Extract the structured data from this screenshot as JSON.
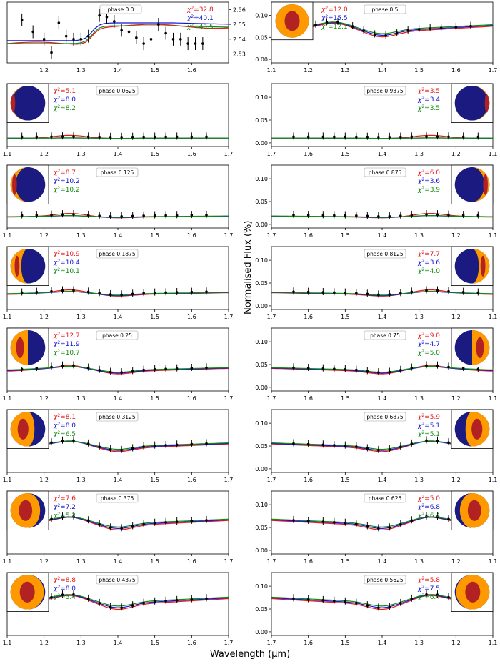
{
  "figure": {
    "xlabel": "Wavelength (μm)",
    "ylabel": "Normalised Flux (%)"
  },
  "colors": {
    "model_a": "#e41a1c",
    "model_b": "#1414d8",
    "model_c": "#138a13",
    "day": "#ff9900",
    "night": "#1a1a80",
    "hot": "#b22222"
  },
  "chart_data": [
    {
      "type": "line",
      "phase": "phase 0.0",
      "chi2": [
        "32.8",
        "40.1",
        "43.5"
      ],
      "xlim": [
        1.1,
        1.7
      ],
      "xticks": [
        "1.2",
        "1.3",
        "1.4",
        "1.5",
        "1.6"
      ],
      "ylim": [
        2.524,
        2.565
      ],
      "yticks": [
        "2.53",
        "2.54",
        "2.55",
        "2.56"
      ],
      "inset": null,
      "obs_x": [
        1.14,
        1.17,
        1.2,
        1.22,
        1.24,
        1.26,
        1.28,
        1.3,
        1.32,
        1.35,
        1.37,
        1.39,
        1.41,
        1.43,
        1.45,
        1.47,
        1.49,
        1.51,
        1.53,
        1.55,
        1.57,
        1.59,
        1.61,
        1.63
      ],
      "obs_y": [
        2.553,
        2.545,
        2.54,
        2.531,
        2.551,
        2.542,
        2.54,
        2.54,
        2.542,
        2.556,
        2.555,
        2.552,
        2.546,
        2.545,
        2.541,
        2.537,
        2.54,
        2.55,
        2.544,
        2.54,
        2.54,
        2.537,
        2.537,
        2.537
      ]
    },
    {
      "type": "line",
      "phase": "phase 0.5",
      "chi2": [
        "12.0",
        "15.5",
        "12.1"
      ],
      "xlim": [
        1.1,
        1.7
      ],
      "xticks": [
        "1.1",
        "1.2",
        "1.3",
        "1.4",
        "1.5",
        "1.6",
        "1.7"
      ],
      "ylim": [
        -0.008,
        0.13
      ],
      "yticks": [
        "0.00",
        "0.05",
        "0.10"
      ],
      "inset": "0.5"
    },
    {
      "type": "line",
      "phase": "phase 0.0625",
      "chi2": [
        "5.1",
        "8.0",
        "8.2"
      ],
      "xlim": [
        1.1,
        1.7
      ],
      "xticks": [
        "1.1",
        "1.2",
        "1.3",
        "1.4",
        "1.5",
        "1.6",
        "1.7"
      ],
      "ylim": [
        -0.008,
        0.13
      ],
      "yticks": [],
      "inset": "0.0625"
    },
    {
      "type": "line",
      "phase": "phase 0.9375",
      "chi2": [
        "3.5",
        "3.4",
        "3.5"
      ],
      "xlim": [
        1.7,
        1.1
      ],
      "xticks": [
        "1.7",
        "1.6",
        "1.5",
        "1.4",
        "1.3",
        "1.2",
        "1.1"
      ],
      "ylim": [
        -0.008,
        0.13
      ],
      "yticks": [
        "0.00",
        "0.05",
        "0.10"
      ],
      "inset": "0.9375"
    },
    {
      "type": "line",
      "phase": "phase 0.125",
      "chi2": [
        "8.7",
        "10.2",
        "10.2"
      ],
      "xlim": [
        1.1,
        1.7
      ],
      "xticks": [
        "1.1",
        "1.2",
        "1.3",
        "1.4",
        "1.5",
        "1.6",
        "1.7"
      ],
      "ylim": [
        -0.008,
        0.13
      ],
      "yticks": [],
      "inset": "0.125"
    },
    {
      "type": "line",
      "phase": "phase 0.875",
      "chi2": [
        "6.0",
        "3.6",
        "3.9"
      ],
      "xlim": [
        1.7,
        1.1
      ],
      "xticks": [
        "1.7",
        "1.6",
        "1.5",
        "1.4",
        "1.3",
        "1.2",
        "1.1"
      ],
      "ylim": [
        -0.008,
        0.13
      ],
      "yticks": [
        "0.00",
        "0.05",
        "0.10"
      ],
      "inset": "0.875"
    },
    {
      "type": "line",
      "phase": "phase 0.1875",
      "chi2": [
        "10.9",
        "10.4",
        "10.1"
      ],
      "xlim": [
        1.1,
        1.7
      ],
      "xticks": [
        "1.1",
        "1.2",
        "1.3",
        "1.4",
        "1.5",
        "1.6",
        "1.7"
      ],
      "ylim": [
        -0.008,
        0.13
      ],
      "yticks": [],
      "inset": "0.1875"
    },
    {
      "type": "line",
      "phase": "phase 0.8125",
      "chi2": [
        "7.7",
        "3.6",
        "4.0"
      ],
      "xlim": [
        1.7,
        1.1
      ],
      "xticks": [
        "1.7",
        "1.6",
        "1.5",
        "1.4",
        "1.3",
        "1.2",
        "1.1"
      ],
      "ylim": [
        -0.008,
        0.13
      ],
      "yticks": [
        "0.00",
        "0.05",
        "0.10"
      ],
      "inset": "0.8125"
    },
    {
      "type": "line",
      "phase": "phase 0.25",
      "chi2": [
        "12.7",
        "11.9",
        "10.7"
      ],
      "xlim": [
        1.1,
        1.7
      ],
      "xticks": [
        "1.1",
        "1.2",
        "1.3",
        "1.4",
        "1.5",
        "1.6",
        "1.7"
      ],
      "ylim": [
        -0.008,
        0.13
      ],
      "yticks": [],
      "inset": "0.25"
    },
    {
      "type": "line",
      "phase": "phase 0.75",
      "chi2": [
        "9.0",
        "4.7",
        "5.0"
      ],
      "xlim": [
        1.7,
        1.1
      ],
      "xticks": [
        "1.7",
        "1.6",
        "1.5",
        "1.4",
        "1.3",
        "1.2",
        "1.1"
      ],
      "ylim": [
        -0.008,
        0.13
      ],
      "yticks": [
        "0.00",
        "0.05",
        "0.10"
      ],
      "inset": "0.75"
    },
    {
      "type": "line",
      "phase": "phase 0.3125",
      "chi2": [
        "8.1",
        "8.0",
        "6.5"
      ],
      "xlim": [
        1.1,
        1.7
      ],
      "xticks": [
        "1.1",
        "1.2",
        "1.3",
        "1.4",
        "1.5",
        "1.6",
        "1.7"
      ],
      "ylim": [
        -0.008,
        0.13
      ],
      "yticks": [],
      "inset": "0.3125"
    },
    {
      "type": "line",
      "phase": "phase 0.6875",
      "chi2": [
        "5.9",
        "5.1",
        "5.1"
      ],
      "xlim": [
        1.7,
        1.1
      ],
      "xticks": [
        "1.7",
        "1.6",
        "1.5",
        "1.4",
        "1.3",
        "1.2",
        "1.1"
      ],
      "ylim": [
        -0.008,
        0.13
      ],
      "yticks": [
        "0.00",
        "0.05",
        "0.10"
      ],
      "inset": "0.6875"
    },
    {
      "type": "line",
      "phase": "phase 0.375",
      "chi2": [
        "7.6",
        "7.2",
        "5.2"
      ],
      "xlim": [
        1.1,
        1.7
      ],
      "xticks": [
        "1.1",
        "1.2",
        "1.3",
        "1.4",
        "1.5",
        "1.6",
        "1.7"
      ],
      "ylim": [
        -0.008,
        0.13
      ],
      "yticks": [],
      "inset": "0.375"
    },
    {
      "type": "line",
      "phase": "phase 0.625",
      "chi2": [
        "5.0",
        "6.8",
        "6.4"
      ],
      "xlim": [
        1.7,
        1.1
      ],
      "xticks": [
        "1.7",
        "1.6",
        "1.5",
        "1.4",
        "1.3",
        "1.2",
        "1.1"
      ],
      "ylim": [
        -0.008,
        0.13
      ],
      "yticks": [
        "0.00",
        "0.05",
        "0.10"
      ],
      "inset": "0.625"
    },
    {
      "type": "line",
      "phase": "phase 0.4375",
      "chi2": [
        "8.8",
        "8.0",
        "5.4"
      ],
      "xlim": [
        1.1,
        1.7
      ],
      "xticks": [
        "1.1",
        "1.2",
        "1.3",
        "1.4",
        "1.5",
        "1.6",
        "1.7"
      ],
      "ylim": [
        -0.008,
        0.13
      ],
      "yticks": [],
      "inset": "0.4375"
    },
    {
      "type": "line",
      "phase": "phase 0.5625",
      "chi2": [
        "5.8",
        "7.5",
        "6.4"
      ],
      "xlim": [
        1.7,
        1.1
      ],
      "xticks": [
        "1.7",
        "1.6",
        "1.5",
        "1.4",
        "1.3",
        "1.2",
        "1.1"
      ],
      "ylim": [
        -0.008,
        0.13
      ],
      "yticks": [
        "0.00",
        "0.05",
        "0.10"
      ],
      "inset": "0.5625"
    }
  ]
}
